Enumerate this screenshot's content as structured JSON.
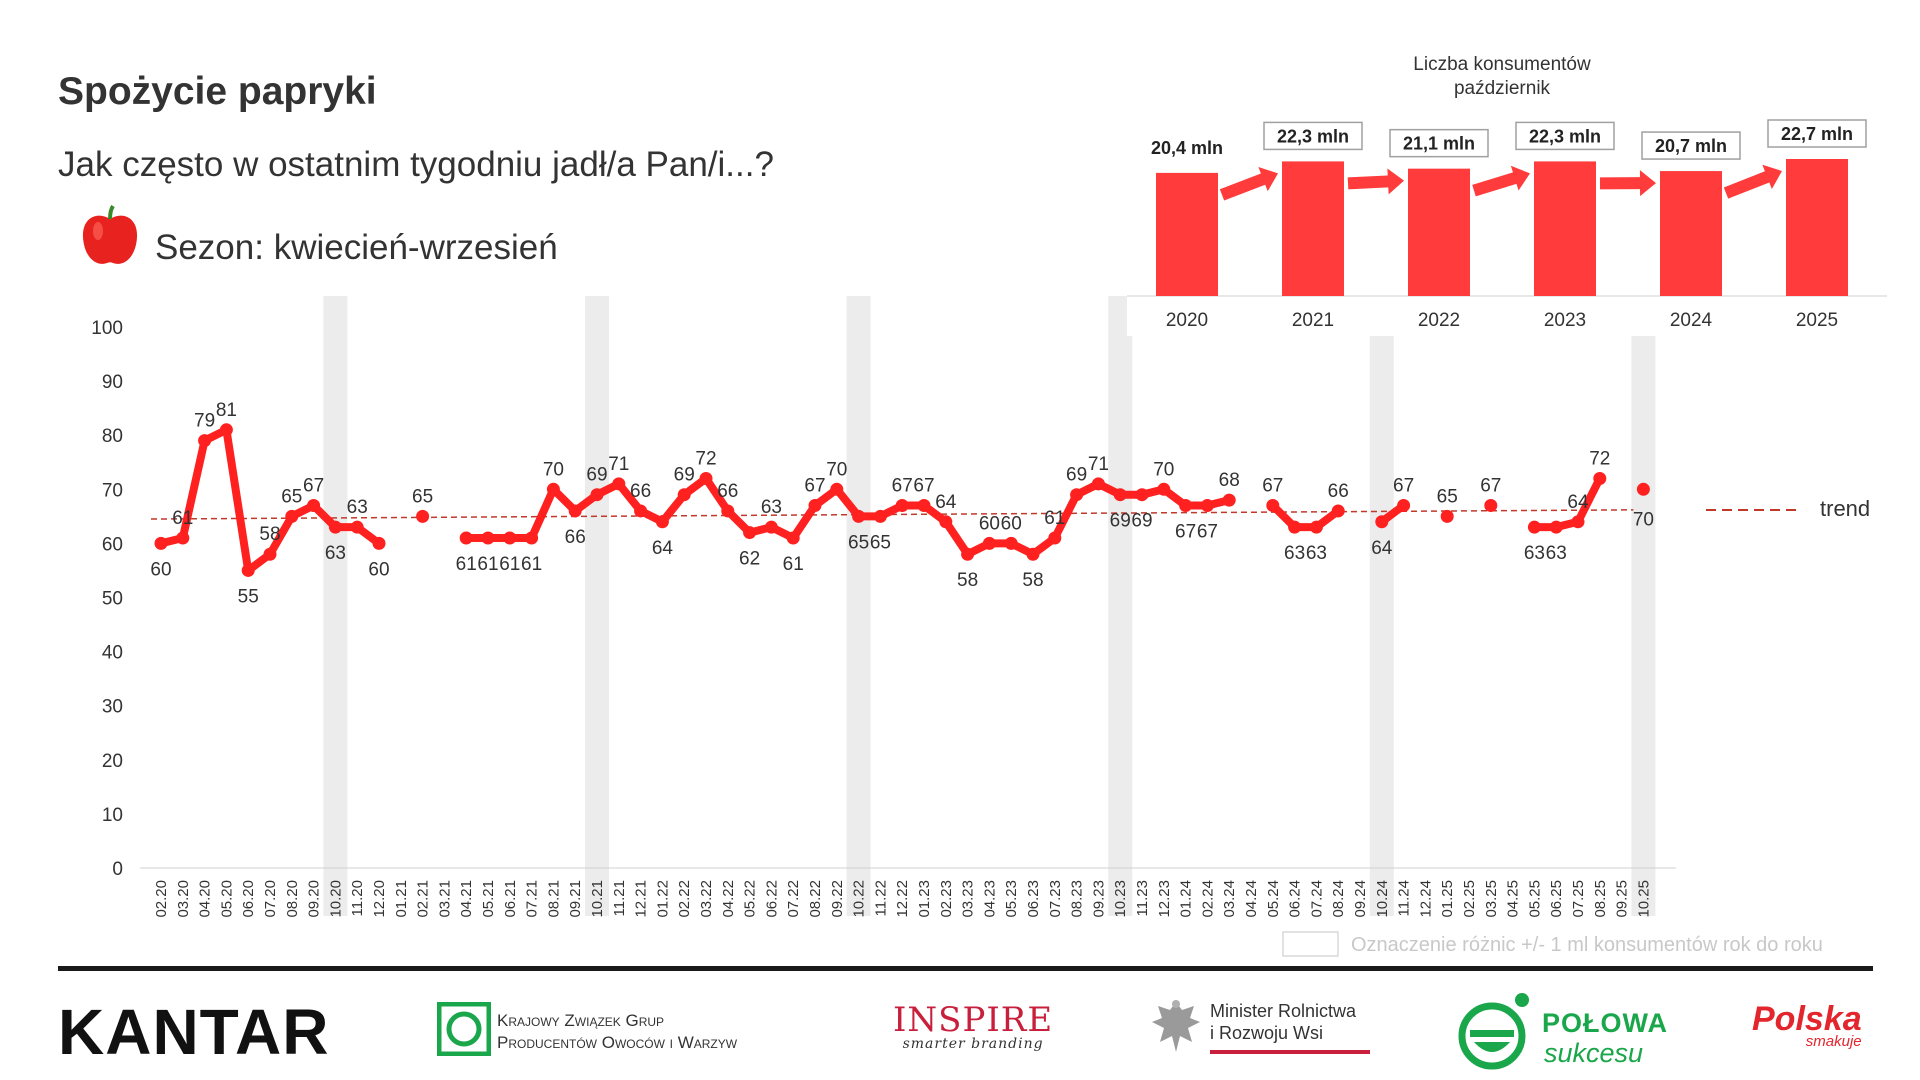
{
  "header": {
    "title": "Spożycie papryki",
    "question": "Jak często w ostatnim tygodniu jadł/a Pan/i...?",
    "season": "Sezon: kwiecień-wrzesień"
  },
  "colors": {
    "series": "#ff2020",
    "bar": "#ff3b3b",
    "trend": "#c0392b",
    "band": "#ececec"
  },
  "chart_data": [
    {
      "type": "line",
      "title": "",
      "ylim": [
        0,
        100
      ],
      "yticks": [
        "0",
        "10",
        "20",
        "30",
        "40",
        "50",
        "60",
        "70",
        "80",
        "90",
        "100"
      ],
      "legend": {
        "trend_label": "trend",
        "band_label": "Oznaczenie różnic +/- 1 ml konsumentów rok do roku"
      },
      "trend": [
        64.5,
        66.2
      ],
      "highlight_categories": [
        "10.20",
        "10.21",
        "10.22",
        "10.23",
        "10.24",
        "10.25"
      ],
      "categories": [
        "02.20",
        "03.20",
        "04.20",
        "05.20",
        "06.20",
        "07.20",
        "08.20",
        "09.20",
        "10.20",
        "11.20",
        "12.20",
        "01.21",
        "02.21",
        "03.21",
        "04.21",
        "05.21",
        "06.21",
        "07.21",
        "08.21",
        "09.21",
        "10.21",
        "11.21",
        "12.21",
        "01.22",
        "02.22",
        "03.22",
        "04.22",
        "05.22",
        "06.22",
        "07.22",
        "08.22",
        "09.22",
        "10.22",
        "11.22",
        "12.22",
        "01.23",
        "02.23",
        "03.23",
        "04.23",
        "05.23",
        "06.23",
        "07.23",
        "08.23",
        "09.23",
        "10.23",
        "11.23",
        "12.23",
        "01.24",
        "02.24",
        "03.24",
        "04.24",
        "05.24",
        "06.24",
        "07.24",
        "08.24",
        "09.24",
        "10.24",
        "11.24",
        "12.24",
        "01.25",
        "02.25",
        "03.25",
        "04.25",
        "05.25",
        "06.25",
        "07.25",
        "08.25",
        "09.25",
        "10.25"
      ],
      "values": [
        60,
        61,
        79,
        81,
        55,
        58,
        65,
        67,
        63,
        63,
        60,
        null,
        65,
        null,
        61,
        61,
        61,
        61,
        70,
        66,
        69,
        71,
        66,
        64,
        69,
        72,
        66,
        62,
        63,
        61,
        67,
        70,
        65,
        65,
        67,
        67,
        64,
        58,
        60,
        60,
        58,
        61,
        69,
        71,
        69,
        69,
        70,
        67,
        67,
        68,
        null,
        67,
        63,
        63,
        66,
        null,
        64,
        67,
        null,
        65,
        null,
        67,
        null,
        63,
        63,
        64,
        72,
        null,
        70
      ],
      "value_labels": [
        "60",
        "61",
        "79",
        "81",
        "55",
        "58",
        "65",
        "67",
        "63",
        "63",
        "60",
        "",
        "65",
        "",
        "61",
        "61",
        "61",
        "61",
        "70",
        "66",
        "69",
        "71",
        "66",
        "64",
        "69",
        "72",
        "66",
        "62",
        "63",
        "61",
        "67",
        "70",
        "65",
        "65",
        "67",
        "67",
        "64",
        "58",
        "60",
        "60",
        "58",
        "61",
        "69",
        "71",
        "69",
        "69",
        "70",
        "67",
        "67",
        "68",
        "",
        "67",
        "63",
        "63",
        "66",
        "",
        "64",
        "67",
        "",
        "65",
        "",
        "67",
        "",
        "63",
        "63",
        "64",
        "72",
        "",
        "70"
      ]
    },
    {
      "type": "bar",
      "title": "Liczba konsumentów\npaździernik",
      "title_lines": [
        "Liczba konsumentów",
        "październik"
      ],
      "categories": [
        "2020",
        "2021",
        "2022",
        "2023",
        "2024",
        "2025"
      ],
      "values": [
        20.4,
        22.3,
        21.1,
        22.3,
        20.7,
        22.7
      ],
      "labels": [
        "20,4  mln",
        "22,3  mln",
        "21,1  mln",
        "22,3  mln",
        "20,7  mln",
        "22,7  mln"
      ],
      "ylim": [
        0,
        24
      ],
      "boxed": [
        false,
        true,
        true,
        true,
        true,
        true
      ]
    }
  ],
  "footer": {
    "kantar": "KANTAR",
    "kzgp_line1": "Krajowy Związek Grup",
    "kzgp_line2": "Producentów Owoców i Warzyw",
    "inspire_main": "INSPIRE",
    "inspire_sub": "smarter branding",
    "minister_line1": "Minister Rolnictwa",
    "minister_line2": "i Rozwoju Wsi",
    "polowa_main": "POŁOWA",
    "polowa_sub": "sukcesu",
    "polska_main": "Polska",
    "polska_sub": "smakuje"
  }
}
